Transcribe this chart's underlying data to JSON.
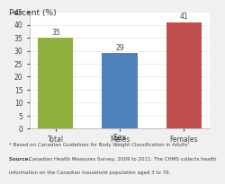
{
  "categories": [
    "Total",
    "Males",
    "Females"
  ],
  "values": [
    35,
    29,
    41
  ],
  "bar_colors": [
    "#8db03e",
    "#4f81bd",
    "#c0504d"
  ],
  "title": "Percent (%)",
  "xlabel": "Sex",
  "ylim": [
    0,
    45
  ],
  "yticks": [
    0,
    5,
    10,
    15,
    20,
    25,
    30,
    35,
    40,
    45
  ],
  "title_fontsize": 6.5,
  "xlabel_fontsize": 6,
  "tick_fontsize": 5.5,
  "label_fontsize": 5.5,
  "footnote1": "* Based on Canadian Guidelines for Body Weight Classification in Adults¹",
  "footnote2_bold": "Source: ",
  "footnote2_rest": "Canadian Health Measures Survey, 2009 to 2011. The CHMS collects health",
  "footnote3": "information on the Canadian household population aged 3 to 79.",
  "background_color": "#f0f0f0",
  "plot_bg": "#ffffff"
}
